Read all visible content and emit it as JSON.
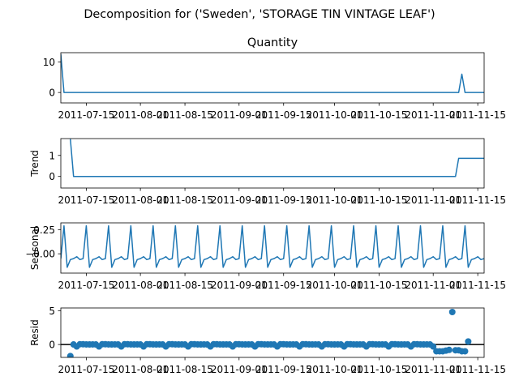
{
  "figure": {
    "suptitle": "Decomposition for ('Sweden', 'STORAGE TIN VINTAGE LEAF')"
  },
  "colors": {
    "line": "#1f77b4",
    "axis": "#000000",
    "background": "#ffffff"
  },
  "x_tick_labels": [
    "2011-07-15",
    "2011-08-01",
    "2011-08-15",
    "2011-09-01",
    "2011-09-15",
    "2011-10-01",
    "2011-10-15",
    "2011-11-01",
    "2011-11-15"
  ],
  "chart_data": [
    {
      "type": "line",
      "title": "Quantity",
      "ylabel": "",
      "x_range": [
        "2011-07-07",
        "2011-11-17"
      ],
      "ylim": [
        -3.4,
        13
      ],
      "yticks": [
        0,
        10
      ],
      "grid": false,
      "series": [
        {
          "x_start": "2011-07-07",
          "values": [
            12.5,
            0,
            0,
            0,
            0,
            0,
            0,
            0,
            0,
            0,
            0,
            0,
            0,
            0,
            0,
            0,
            0,
            0,
            0,
            0,
            0,
            0,
            0,
            0,
            0,
            0,
            0,
            0,
            0,
            0,
            0,
            0,
            0,
            0,
            0,
            0,
            0,
            0,
            0,
            0,
            0,
            0,
            0,
            0,
            0,
            0,
            0,
            0,
            0,
            0,
            0,
            0,
            0,
            0,
            0,
            0,
            0,
            0,
            0,
            0,
            0,
            0,
            0,
            0,
            0,
            0,
            0,
            0,
            0,
            0,
            0,
            0,
            0,
            0,
            0,
            0,
            0,
            0,
            0,
            0,
            0,
            0,
            0,
            0,
            0,
            0,
            0,
            0,
            0,
            0,
            0,
            0,
            0,
            0,
            0,
            0,
            0,
            0,
            0,
            0,
            0,
            0,
            0,
            0,
            0,
            0,
            0,
            0,
            0,
            0,
            0,
            0,
            0,
            0,
            0,
            0,
            0,
            0,
            0,
            0,
            0,
            0,
            0,
            0,
            0,
            0,
            6,
            0,
            0,
            0,
            0,
            0,
            0,
            0,
            0,
            0,
            -3
          ]
        }
      ]
    },
    {
      "type": "line",
      "title": "",
      "ylabel": "Trend",
      "x_range": [
        "2011-07-07",
        "2011-11-17"
      ],
      "ylim": [
        -0.55,
        1.8
      ],
      "yticks": [
        0,
        1
      ],
      "grid": false,
      "series": [
        {
          "x_start": "2011-07-10",
          "values": [
            1.78,
            0,
            0,
            0,
            0,
            0,
            0,
            0,
            0,
            0,
            0,
            0,
            0,
            0,
            0,
            0,
            0,
            0,
            0,
            0,
            0,
            0,
            0,
            0,
            0,
            0,
            0,
            0,
            0,
            0,
            0,
            0,
            0,
            0,
            0,
            0,
            0,
            0,
            0,
            0,
            0,
            0,
            0,
            0,
            0,
            0,
            0,
            0,
            0,
            0,
            0,
            0,
            0,
            0,
            0,
            0,
            0,
            0,
            0,
            0,
            0,
            0,
            0,
            0,
            0,
            0,
            0,
            0,
            0,
            0,
            0,
            0,
            0,
            0,
            0,
            0,
            0,
            0,
            0,
            0,
            0,
            0,
            0,
            0,
            0,
            0,
            0,
            0,
            0,
            0,
            0,
            0,
            0,
            0,
            0,
            0,
            0,
            0,
            0,
            0,
            0,
            0,
            0,
            0,
            0,
            0,
            0,
            0,
            0,
            0,
            0,
            0,
            0,
            0,
            0,
            0,
            0,
            0,
            0,
            0,
            0,
            0,
            0.86,
            0.86,
            0.86,
            0.86,
            0.86,
            0.86,
            0.86,
            0.86,
            0.86,
            0.86,
            -0.5
          ]
        }
      ]
    },
    {
      "type": "line",
      "title": "",
      "ylabel": "Seasonal",
      "x_range": [
        "2011-07-07",
        "2011-11-17"
      ],
      "ylim": [
        -0.2,
        0.32
      ],
      "yticks": [
        -0.0,
        0.25
      ],
      "ytick_labels": [
        "−0.00",
        "0.25"
      ],
      "grid": false,
      "series": [
        {
          "x_start": "2011-07-07",
          "period": 7,
          "pattern": [
            -0.05,
            0.29,
            -0.14,
            -0.06,
            -0.05,
            -0.03,
            -0.06
          ]
        }
      ]
    },
    {
      "type": "scatter",
      "title": "",
      "ylabel": "Resid",
      "x_range": [
        "2011-07-07",
        "2011-11-17"
      ],
      "ylim": [
        -1.9,
        5.4
      ],
      "yticks": [
        0,
        5
      ],
      "grid": false,
      "zero_line": true,
      "series": [
        {
          "x_start": "2011-07-10",
          "base_pattern": [
            0.02,
            0.01,
            -0.29,
            0.05,
            0.04,
            0.02,
            0.01
          ],
          "overrides": [
            {
              "x": "2011-07-10",
              "y": -1.7
            },
            {
              "x": "2011-11-02",
              "y": -1.0
            },
            {
              "x": "2011-11-03",
              "y": -1.0
            },
            {
              "x": "2011-11-04",
              "y": -1.0
            },
            {
              "x": "2011-11-05",
              "y": -0.9
            },
            {
              "x": "2011-11-06",
              "y": -0.8
            },
            {
              "x": "2011-11-07",
              "y": 4.8
            },
            {
              "x": "2011-11-08",
              "y": -0.85
            },
            {
              "x": "2011-11-09",
              "y": -0.85
            },
            {
              "x": "2011-11-10",
              "y": -1.0
            },
            {
              "x": "2011-11-11",
              "y": -1.0
            },
            {
              "x": "2011-11-12",
              "y": 0.45
            }
          ],
          "x_end": "2011-11-12"
        }
      ]
    }
  ]
}
